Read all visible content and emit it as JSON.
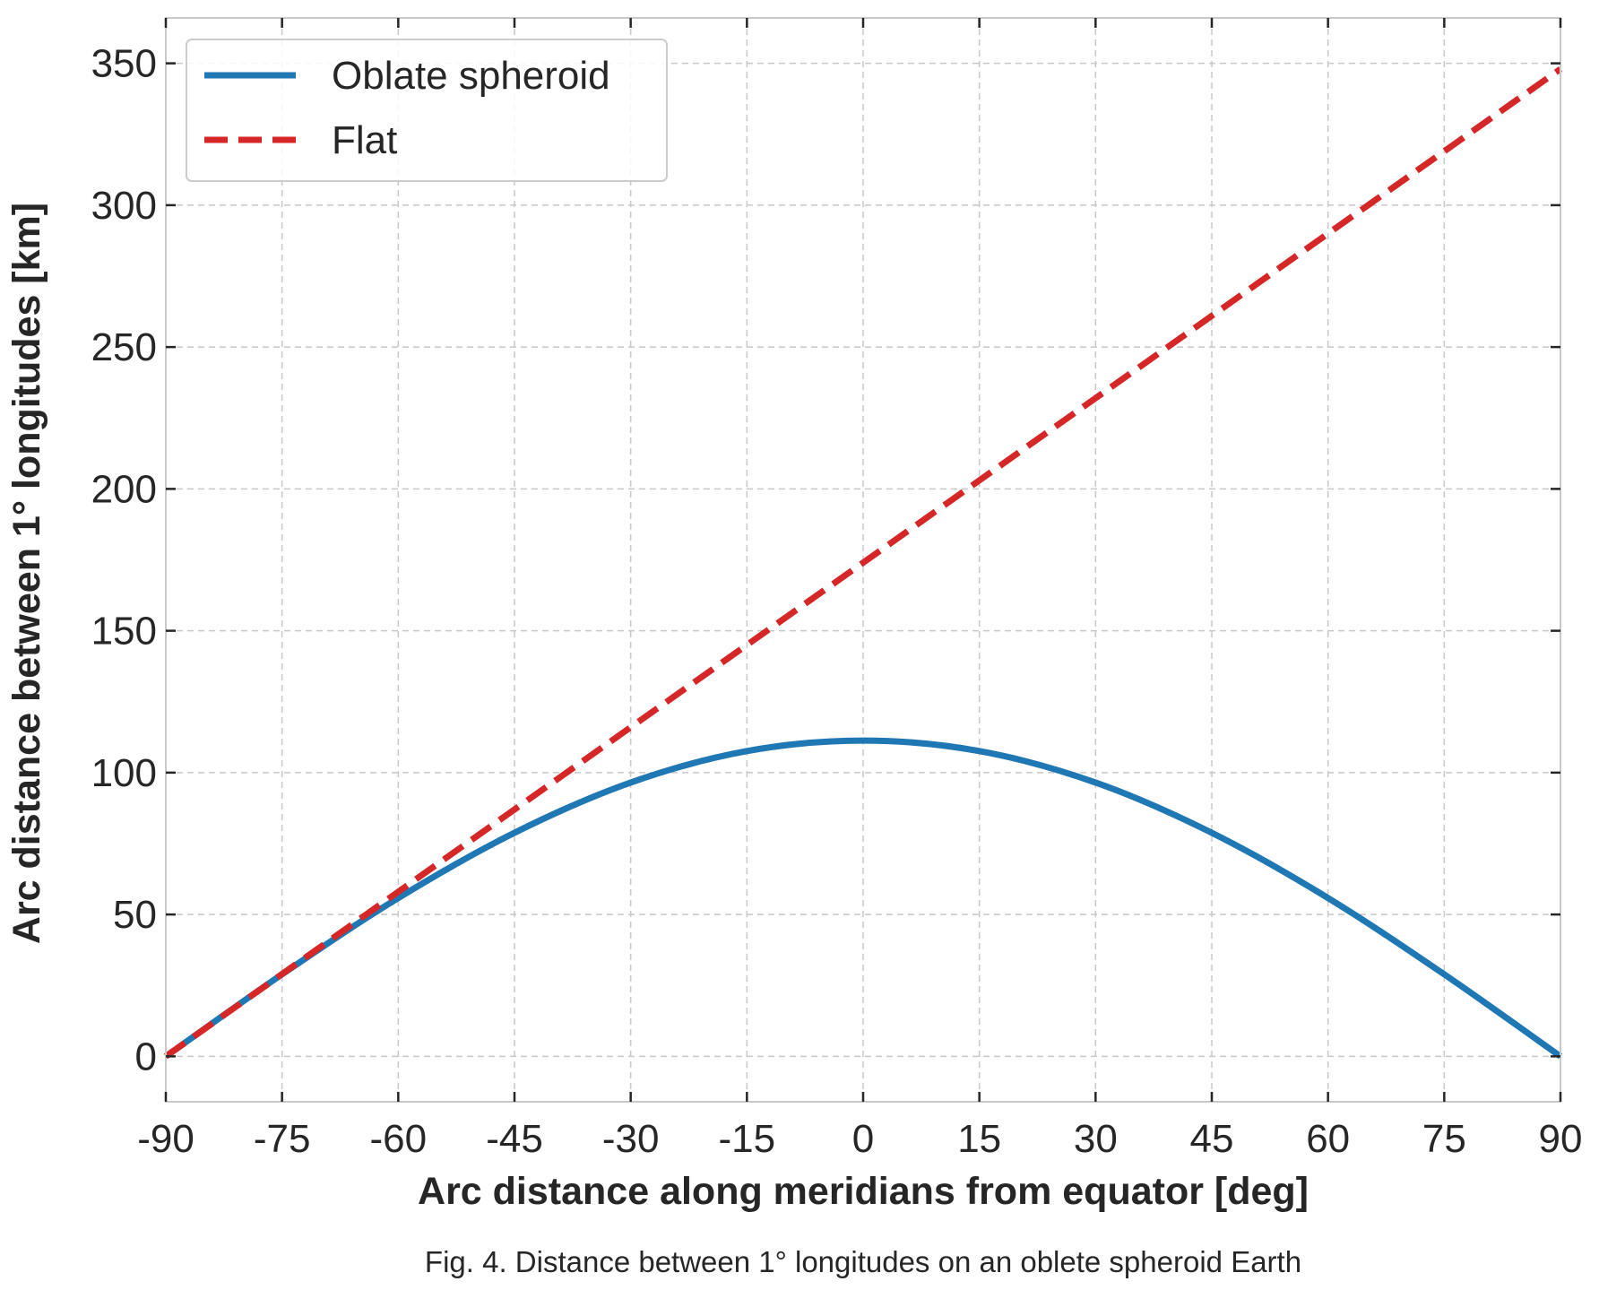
{
  "chart_data": {
    "type": "line",
    "caption": "Fig. 4. Distance between 1° longitudes on an oblete spheroid Earth",
    "xlabel": "Arc distance along meridians from equator [deg]",
    "ylabel": "Arc distance between 1° longitudes [km]",
    "xlim": [
      -90,
      90
    ],
    "ylim": [
      -16,
      366
    ],
    "xticks": [
      -90,
      -75,
      -60,
      -45,
      -30,
      -15,
      0,
      15,
      30,
      45,
      60,
      75,
      90
    ],
    "xtick_labels": [
      "-90",
      "-75",
      "-60",
      "-45",
      "-30",
      "-15",
      "0",
      "15",
      "30",
      "45",
      "60",
      "75",
      "90"
    ],
    "yticks": [
      0,
      50,
      100,
      150,
      200,
      250,
      300,
      350
    ],
    "ytick_labels": [
      "0",
      "50",
      "100",
      "150",
      "200",
      "250",
      "300",
      "350"
    ],
    "grid": true,
    "legend_position": "top-left",
    "series": [
      {
        "name": "Oblate spheroid",
        "color": "#1f77b4",
        "style": "solid",
        "x": [
          -90,
          -75,
          -60,
          -45,
          -30,
          -15,
          0,
          15,
          30,
          45,
          60,
          75,
          90
        ],
        "y": [
          0,
          28.9,
          55.8,
          78.8,
          96.5,
          107.6,
          111.3,
          107.6,
          96.5,
          78.8,
          55.8,
          28.9,
          0
        ]
      },
      {
        "name": "Flat",
        "color": "#d62728",
        "style": "dashed",
        "x": [
          -90,
          90
        ],
        "y": [
          0,
          348
        ]
      }
    ]
  }
}
